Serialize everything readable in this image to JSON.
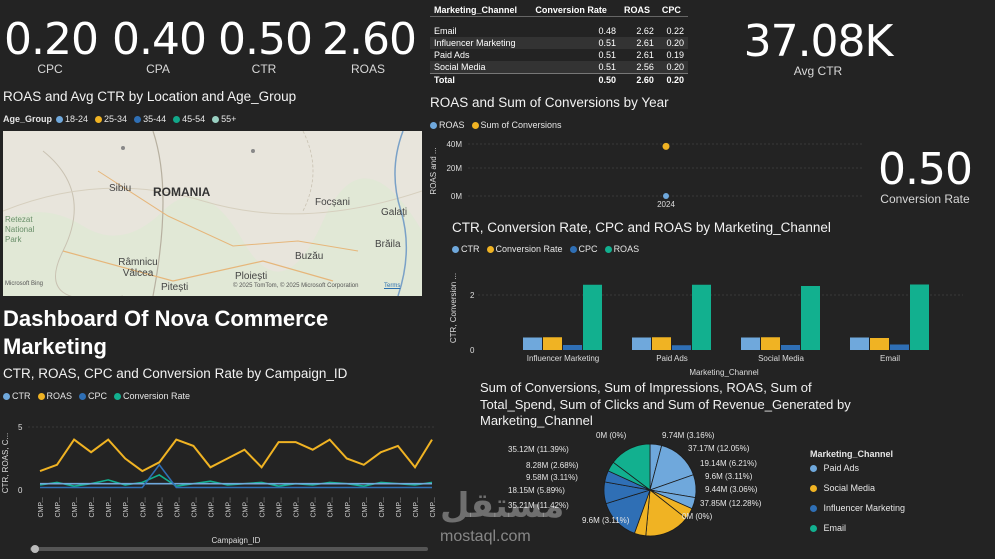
{
  "kpis": [
    {
      "value": "0.20",
      "label": "CPC"
    },
    {
      "value": "0.40",
      "label": "CPA"
    },
    {
      "value": "0.50",
      "label": "CTR"
    },
    {
      "value": "2.60",
      "label": "ROAS"
    }
  ],
  "avg_ctr": {
    "value": "37.08K",
    "label": "Avg CTR"
  },
  "conversion_rate": {
    "value": "0.50",
    "label": "Conversion Rate"
  },
  "channel_table": {
    "headers": [
      "Marketing_Channel",
      "Conversion Rate",
      "ROAS",
      "CPC"
    ],
    "rows": [
      [
        "Email",
        "0.48",
        "2.62",
        "0.22"
      ],
      [
        "Influencer Marketing",
        "0.51",
        "2.61",
        "0.20"
      ],
      [
        "Paid Ads",
        "0.51",
        "2.61",
        "0.19"
      ],
      [
        "Social Media",
        "0.51",
        "2.56",
        "0.20"
      ]
    ],
    "total": [
      "Total",
      "0.50",
      "2.60",
      "0.20"
    ]
  },
  "map": {
    "title": "ROAS and Avg CTR by Location and Age_Group",
    "legend_title": "Age_Group",
    "legend": [
      {
        "label": "18-24",
        "color": "#6fa8dc"
      },
      {
        "label": "25-34",
        "color": "#f0b323"
      },
      {
        "label": "35-44",
        "color": "#2f6fb5"
      },
      {
        "label": "45-54",
        "color": "#12a88a"
      },
      {
        "label": "55+",
        "color": "#9ad0c2"
      }
    ],
    "labels": {
      "sibiu": "Sibiu",
      "romania": "ROMANIA",
      "focsani": "Focșani",
      "galati": "Galați",
      "braila": "Brăila",
      "retezat": "Retezat National Park",
      "ramnicu": "Râmnicu Vâlcea",
      "buzau": "Buzău",
      "ploiesti": "Ploiești",
      "pitesti": "Pitești",
      "bing": "Microsoft Bing",
      "copyright": "© 2025 TomTom, © 2025 Microsoft Corporation",
      "terms": "Terms"
    }
  },
  "dashboard_title": "Dashboard Of Nova Commerce Marketing",
  "year_chart": {
    "title": "ROAS and Sum of Conversions by Year",
    "legend": [
      {
        "label": "ROAS",
        "color": "#6fa8dc"
      },
      {
        "label": "Sum of Conversions",
        "color": "#f0b323"
      }
    ],
    "ylabel": "ROAS and ...",
    "yticks": [
      "40M",
      "20M",
      "0M"
    ],
    "xtick": "2024"
  },
  "bar_chart": {
    "title": "CTR, Conversion Rate, CPC and ROAS by Marketing_Channel",
    "legend": [
      {
        "label": "CTR",
        "color": "#6fa8dc"
      },
      {
        "label": "Conversion Rate",
        "color": "#f0b323"
      },
      {
        "label": "CPC",
        "color": "#2f6fb5"
      },
      {
        "label": "ROAS",
        "color": "#12b08f"
      }
    ],
    "ylabel": "CTR, Conversion ...",
    "xlabel": "Marketing_Channel",
    "yticks": [
      "2",
      "0"
    ]
  },
  "campaign_chart": {
    "title": "CTR, ROAS, CPC and Conversion Rate by Campaign_ID",
    "legend": [
      {
        "label": "CTR",
        "color": "#6fa8dc"
      },
      {
        "label": "ROAS",
        "color": "#f0b323"
      },
      {
        "label": "CPC",
        "color": "#2f6fb5"
      },
      {
        "label": "Conversion Rate",
        "color": "#12b08f"
      }
    ],
    "ylabel": "CTR, ROAS, C...",
    "xlabel": "Campaign_ID",
    "yticks": [
      "5",
      "0"
    ],
    "xtick_label": "CMP..."
  },
  "pie_chart": {
    "title_lines": [
      "Sum of Conversions, Sum of Impressions, ROAS, Sum of",
      "Total_Spend, Sum of Clicks and Sum of Revenue_Generated by",
      "Marketing_Channel"
    ],
    "legend_title": "Marketing_Channel",
    "legend": [
      {
        "label": "Paid Ads",
        "color": "#6fa8dc"
      },
      {
        "label": "Social Media",
        "color": "#f0b323"
      },
      {
        "label": "Influencer Marketing",
        "color": "#2f6fb5"
      },
      {
        "label": "Email",
        "color": "#12b08f"
      }
    ],
    "slice_labels": [
      "9.74M (3.16%)",
      "37.17M (12.05%)",
      "19.14M (6.21%)",
      "9.6M (3.11%)",
      "9.44M (3.06%)",
      "37.85M (12.28%)",
      "0M (0%)",
      "9.6M (3.11%)",
      "35.21M (11.42%)",
      "18.15M (5.89%)",
      "9.58M (3.11%)",
      "8.28M (2.68%)",
      "35.12M (11.39%)",
      "0M (0%)"
    ]
  },
  "watermark": {
    "arabic": "مستقل",
    "latin": "mostaql.com"
  },
  "chart_data": [
    {
      "type": "line",
      "title": "ROAS and Sum of Conversions by Year",
      "x": [
        "2024"
      ],
      "series": [
        {
          "name": "ROAS",
          "values": [
            2.6
          ]
        },
        {
          "name": "Sum of Conversions",
          "values": [
            36000000
          ]
        }
      ],
      "ylim": [
        0,
        45000000
      ]
    },
    {
      "type": "bar",
      "title": "CTR, Conversion Rate, CPC and ROAS by Marketing_Channel",
      "categories": [
        "Influencer Marketing",
        "Paid Ads",
        "Social Media",
        "Email"
      ],
      "series": [
        {
          "name": "CTR",
          "values": [
            0.5,
            0.5,
            0.5,
            0.5
          ]
        },
        {
          "name": "Conversion Rate",
          "values": [
            0.51,
            0.51,
            0.51,
            0.48
          ]
        },
        {
          "name": "CPC",
          "values": [
            0.2,
            0.19,
            0.2,
            0.22
          ]
        },
        {
          "name": "ROAS",
          "values": [
            2.61,
            2.61,
            2.56,
            2.62
          ]
        }
      ],
      "xlabel": "Marketing_Channel",
      "ylim": [
        0,
        3
      ]
    },
    {
      "type": "line",
      "title": "CTR, ROAS, CPC and Conversion Rate by Campaign_ID",
      "series": [
        {
          "name": "CTR",
          "values": [
            0.5,
            0.5,
            0.5,
            0.5,
            0.5,
            0.5,
            0.5,
            0.5,
            0.5,
            0.5,
            0.5,
            0.5,
            0.5,
            0.5,
            0.5,
            0.5,
            0.5,
            0.5,
            0.5,
            0.5,
            0.5,
            0.5,
            0.5,
            0.5
          ]
        },
        {
          "name": "ROAS",
          "values": [
            1.5,
            2.0,
            4.0,
            3.0,
            4.0,
            2.5,
            1.5,
            2.2,
            4.0,
            3.5,
            1.8,
            2.5,
            3.2,
            1.8,
            3.8,
            3.8,
            3.2,
            4.0,
            2.5,
            2.0,
            3.0,
            3.5,
            1.8,
            4.0
          ]
        },
        {
          "name": "CPC",
          "values": [
            0.2,
            0.2,
            0.2,
            0.2,
            0.2,
            0.2,
            0.2,
            2.0,
            0.2,
            0.2,
            0.2,
            0.2,
            0.2,
            0.2,
            0.2,
            0.2,
            0.2,
            0.2,
            0.2,
            0.2,
            0.2,
            0.2,
            0.2,
            0.2
          ]
        },
        {
          "name": "Conversion Rate",
          "values": [
            0.4,
            0.6,
            0.3,
            0.5,
            0.8,
            0.4,
            0.6,
            1.2,
            0.3,
            0.5,
            0.7,
            0.4,
            0.5,
            0.6,
            0.3,
            0.5,
            0.4,
            0.6,
            0.5,
            0.3,
            0.6,
            0.5,
            0.4,
            0.6
          ]
        }
      ],
      "xlabel": "Campaign_ID",
      "ylim": [
        0,
        5
      ]
    },
    {
      "type": "pie",
      "title": "Sum of Conversions, Sum of Impressions, ROAS, Sum of Total_Spend, Sum of Clicks and Sum of Revenue_Generated by Marketing_Channel",
      "slices": [
        {
          "label": "9.74M (3.16%)",
          "value": 3.16,
          "color": "#6fa8dc"
        },
        {
          "label": "37.17M (12.05%)",
          "value": 12.05,
          "color": "#6fa8dc"
        },
        {
          "label": "19.14M (6.21%)",
          "value": 6.21,
          "color": "#6fa8dc"
        },
        {
          "label": "9.6M (3.11%)",
          "value": 3.11,
          "color": "#6fa8dc"
        },
        {
          "label": "9.44M (3.06%)",
          "value": 3.06,
          "color": "#f0b323"
        },
        {
          "label": "37.85M (12.28%)",
          "value": 12.28,
          "color": "#f0b323"
        },
        {
          "label": "0M (0%)",
          "value": 0.0,
          "color": "#f0b323"
        },
        {
          "label": "9.6M (3.11%)",
          "value": 3.11,
          "color": "#f0b323"
        },
        {
          "label": "35.21M (11.42%)",
          "value": 11.42,
          "color": "#2f6fb5"
        },
        {
          "label": "18.15M (5.89%)",
          "value": 5.89,
          "color": "#2f6fb5"
        },
        {
          "label": "9.58M (3.11%)",
          "value": 3.11,
          "color": "#2f6fb5"
        },
        {
          "label": "8.28M (2.68%)",
          "value": 2.68,
          "color": "#12b08f"
        },
        {
          "label": "35.12M (11.39%)",
          "value": 11.39,
          "color": "#12b08f"
        },
        {
          "label": "0M (0%)",
          "value": 0.0,
          "color": "#12b08f"
        }
      ]
    }
  ]
}
